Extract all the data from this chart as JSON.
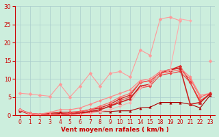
{
  "xlabel": "Vent moyen/en rafales ( km/h )",
  "background_color": "#cceedd",
  "grid_color": "#aacccc",
  "xlabels": [
    "0",
    "1",
    "2",
    "3",
    "4",
    "5",
    "6",
    "7",
    "8",
    "9",
    "10",
    "11",
    "14",
    "15",
    "18",
    "19",
    "20",
    "21",
    "22",
    "23"
  ],
  "ylim": [
    0,
    30
  ],
  "yticks": [
    0,
    5,
    10,
    15,
    20,
    25,
    30
  ],
  "series": [
    {
      "y": [
        6.0,
        5.8,
        5.5,
        5.2,
        8.5,
        5.0,
        8.0,
        11.5,
        8.0,
        11.5,
        12.0,
        10.5,
        18.0,
        16.5,
        26.5,
        27.0,
        26.0,
        null,
        null,
        15.0
      ],
      "color": "#ff9999",
      "lw": 0.8,
      "marker": "D",
      "ms": 2.5
    },
    {
      "y": [
        1.5,
        0.5,
        0.3,
        0.5,
        0.8,
        0.8,
        1.0,
        1.5,
        2.0,
        3.0,
        4.5,
        5.5,
        9.0,
        9.5,
        11.5,
        12.5,
        13.5,
        9.0,
        3.5,
        6.0
      ],
      "color": "#dd2222",
      "lw": 1.0,
      "marker": "D",
      "ms": 2.5
    },
    {
      "y": [
        1.2,
        0.2,
        0.0,
        0.3,
        0.5,
        0.5,
        0.8,
        1.0,
        1.0,
        1.0,
        1.2,
        1.2,
        2.0,
        2.2,
        3.5,
        3.5,
        3.5,
        3.0,
        2.0,
        5.5
      ],
      "color": "#aa0000",
      "lw": 0.8,
      "marker": "^",
      "ms": 2.5
    },
    {
      "y": [
        1.5,
        0.3,
        0.0,
        0.2,
        0.3,
        0.5,
        1.0,
        1.5,
        2.5,
        3.5,
        5.0,
        6.0,
        9.0,
        9.5,
        11.5,
        12.0,
        12.5,
        10.0,
        5.0,
        6.0
      ],
      "color": "#ff6666",
      "lw": 0.9,
      "marker": "D",
      "ms": 2.0
    },
    {
      "y": [
        1.5,
        0.5,
        0.3,
        0.8,
        1.5,
        1.5,
        2.0,
        3.0,
        4.0,
        5.0,
        6.0,
        7.0,
        9.5,
        10.0,
        12.0,
        12.5,
        13.0,
        10.5,
        5.5,
        6.0
      ],
      "color": "#ff8888",
      "lw": 0.9,
      "marker": "D",
      "ms": 2.0
    },
    {
      "y": [
        1.3,
        0.2,
        0.0,
        0.0,
        0.2,
        0.2,
        0.4,
        0.8,
        1.5,
        2.5,
        4.0,
        5.0,
        7.5,
        8.0,
        11.0,
        11.5,
        12.0,
        9.0,
        4.0,
        5.8
      ],
      "color": "#ee4444",
      "lw": 0.8,
      "marker": "D",
      "ms": 2.0
    },
    {
      "y": [
        1.5,
        0.3,
        0.0,
        0.0,
        0.0,
        0.3,
        0.5,
        1.0,
        1.5,
        2.5,
        3.5,
        4.5,
        8.0,
        8.5,
        12.0,
        12.5,
        13.0,
        3.0,
        3.5,
        6.0
      ],
      "color": "#cc2222",
      "lw": 1.2,
      "marker": "^",
      "ms": 3.0
    },
    {
      "y": [
        1.5,
        0.3,
        0.0,
        0.0,
        0.0,
        0.0,
        0.3,
        0.5,
        1.0,
        1.5,
        2.5,
        3.5,
        7.5,
        8.5,
        12.0,
        12.5,
        26.5,
        26.0,
        null,
        null
      ],
      "color": "#ffaaaa",
      "lw": 0.8,
      "marker": "D",
      "ms": 2.0
    }
  ]
}
